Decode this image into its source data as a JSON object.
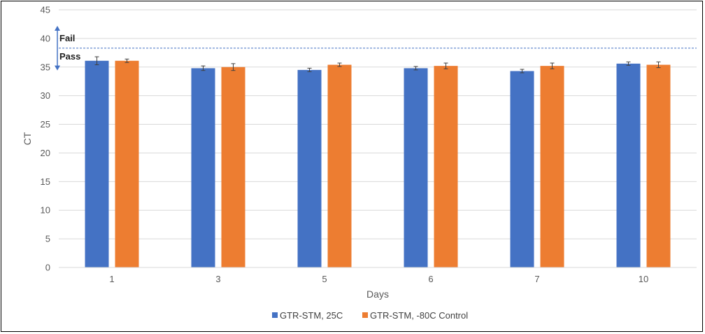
{
  "chart_data": {
    "type": "bar",
    "title": "",
    "xlabel": "Days",
    "ylabel": "CT",
    "ylim": [
      0,
      45
    ],
    "ytick_step": 5,
    "yticks": [
      "0",
      "5",
      "10",
      "15",
      "20",
      "25",
      "30",
      "35",
      "40",
      "45"
    ],
    "categories": [
      "1",
      "3",
      "5",
      "6",
      "7",
      "10"
    ],
    "series": [
      {
        "name": "GTR-STM, 25C",
        "color": "#4472C4",
        "values": [
          36.1,
          34.8,
          34.5,
          34.8,
          34.3,
          35.6
        ],
        "errors": [
          0.7,
          0.4,
          0.3,
          0.3,
          0.3,
          0.3
        ]
      },
      {
        "name": "GTR-STM, -80C Control",
        "color": "#ED7D31",
        "values": [
          36.1,
          35.0,
          35.4,
          35.2,
          35.2,
          35.4
        ],
        "errors": [
          0.3,
          0.6,
          0.3,
          0.5,
          0.5,
          0.5
        ]
      }
    ],
    "threshold": {
      "value": 38.3,
      "color": "#4472C4",
      "style": "dashed"
    },
    "annotations": {
      "fail_label": "Fail",
      "pass_label": "Pass",
      "arrow_color": "#4472C4"
    },
    "grid": true,
    "legend_position": "bottom"
  }
}
